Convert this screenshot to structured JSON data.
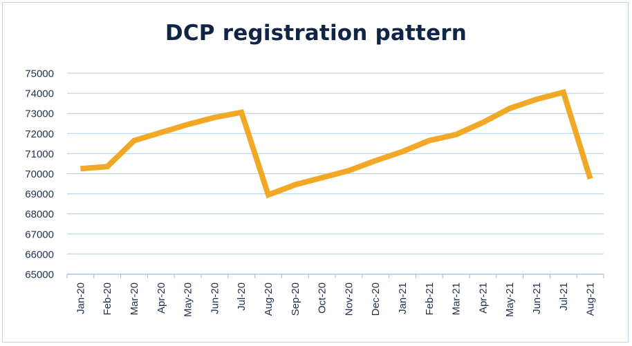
{
  "chart_data": {
    "type": "line",
    "title": "DCP registration pattern",
    "xlabel": "",
    "ylabel": "",
    "ylim": [
      65000,
      75000
    ],
    "yticks": [
      65000,
      66000,
      67000,
      68000,
      69000,
      70000,
      71000,
      72000,
      73000,
      74000,
      75000
    ],
    "categories": [
      "Jan-20",
      "Feb-20",
      "Mar-20",
      "Apr-20",
      "May-20",
      "Jun-20",
      "Jul-20",
      "Aug-20",
      "Sep-20",
      "Oct-20",
      "Nov-20",
      "Dec-20",
      "Jan-21",
      "Feb-21",
      "Mar-21",
      "Apr-21",
      "May-21",
      "Jun-21",
      "Jul-21",
      "Aug-21"
    ],
    "series": [
      {
        "values": [
          70250,
          70350,
          71650,
          72050,
          72450,
          72800,
          73050,
          68950,
          69450,
          69800,
          70150,
          70650,
          71100,
          71650,
          71950,
          72550,
          73250,
          73700,
          74050,
          69750
        ],
        "color": "#f0a826"
      }
    ],
    "grid": true,
    "legend": "none",
    "colors": {
      "gridline": "#a9cfee",
      "axis": "#9dbbd8",
      "line": "#f0a826",
      "title": "#0f2447",
      "frame": "#bfd3ea"
    }
  }
}
